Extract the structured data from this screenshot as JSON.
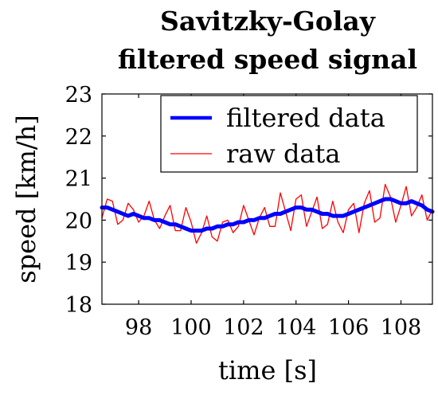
{
  "chart_data": {
    "type": "line",
    "title_lines": [
      "Savitzky-Golay",
      "filtered speed signal"
    ],
    "xlabel": "time [s]",
    "ylabel": "speed [km/h]",
    "xlim": [
      96.6,
      109.2
    ],
    "ylim": [
      18,
      23
    ],
    "xticks": [
      98,
      100,
      102,
      104,
      106,
      108
    ],
    "yticks": [
      18,
      19,
      20,
      21,
      22,
      23
    ],
    "grid": false,
    "legend_position": "top-right",
    "series": [
      {
        "name": "filtered data",
        "color": "#0000ff",
        "x": [
          96.6,
          96.8,
          97.0,
          97.2,
          97.4,
          97.6,
          97.8,
          98.0,
          98.2,
          98.4,
          98.6,
          98.8,
          99.0,
          99.2,
          99.4,
          99.6,
          99.8,
          100.0,
          100.2,
          100.4,
          100.6,
          100.8,
          101.0,
          101.2,
          101.4,
          101.6,
          101.8,
          102.0,
          102.2,
          102.4,
          102.6,
          102.8,
          103.0,
          103.2,
          103.4,
          103.6,
          103.8,
          104.0,
          104.2,
          104.4,
          104.6,
          104.8,
          105.0,
          105.2,
          105.4,
          105.6,
          105.8,
          106.0,
          106.2,
          106.4,
          106.6,
          106.8,
          107.0,
          107.2,
          107.4,
          107.6,
          107.8,
          108.0,
          108.2,
          108.4,
          108.6,
          108.8,
          109.0,
          109.2
        ],
        "y": [
          20.3,
          20.3,
          20.25,
          20.2,
          20.15,
          20.1,
          20.15,
          20.1,
          20.05,
          20.05,
          20.0,
          20.0,
          19.95,
          19.9,
          19.9,
          19.85,
          19.8,
          19.75,
          19.75,
          19.75,
          19.8,
          19.8,
          19.85,
          19.85,
          19.9,
          19.9,
          19.95,
          19.95,
          20.0,
          20.0,
          20.05,
          20.05,
          20.1,
          20.15,
          20.15,
          20.2,
          20.25,
          20.3,
          20.3,
          20.25,
          20.25,
          20.2,
          20.15,
          20.15,
          20.1,
          20.1,
          20.1,
          20.15,
          20.2,
          20.25,
          20.3,
          20.35,
          20.4,
          20.45,
          20.5,
          20.5,
          20.45,
          20.4,
          20.4,
          20.45,
          20.4,
          20.35,
          20.25,
          20.2
        ]
      },
      {
        "name": "raw data",
        "color": "#ff0000",
        "x": [
          96.6,
          96.8,
          97.0,
          97.2,
          97.4,
          97.6,
          97.8,
          98.0,
          98.2,
          98.4,
          98.6,
          98.8,
          99.0,
          99.2,
          99.4,
          99.6,
          99.8,
          100.0,
          100.2,
          100.4,
          100.6,
          100.8,
          101.0,
          101.2,
          101.4,
          101.6,
          101.8,
          102.0,
          102.2,
          102.4,
          102.6,
          102.8,
          103.0,
          103.2,
          103.4,
          103.6,
          103.8,
          104.0,
          104.2,
          104.4,
          104.6,
          104.8,
          105.0,
          105.2,
          105.4,
          105.6,
          105.8,
          106.0,
          106.2,
          106.4,
          106.6,
          106.8,
          107.0,
          107.2,
          107.4,
          107.6,
          107.8,
          108.0,
          108.2,
          108.4,
          108.6,
          108.8,
          109.0,
          109.2
        ],
        "y": [
          20.05,
          20.5,
          20.45,
          19.9,
          20.0,
          20.4,
          20.25,
          19.95,
          20.1,
          20.45,
          20.0,
          19.8,
          20.1,
          20.35,
          19.75,
          19.75,
          20.3,
          19.95,
          19.45,
          19.7,
          20.1,
          19.6,
          19.5,
          19.95,
          20.0,
          19.7,
          19.85,
          20.35,
          20.0,
          19.65,
          20.05,
          20.3,
          19.85,
          19.85,
          20.65,
          20.2,
          19.75,
          20.5,
          20.6,
          19.85,
          20.2,
          20.55,
          19.8,
          19.9,
          20.45,
          19.95,
          19.7,
          20.25,
          20.4,
          19.7,
          20.4,
          20.7,
          19.95,
          20.05,
          20.85,
          20.55,
          19.95,
          20.35,
          20.8,
          20.1,
          20.3,
          20.6,
          20.0,
          20.25
        ]
      }
    ]
  }
}
